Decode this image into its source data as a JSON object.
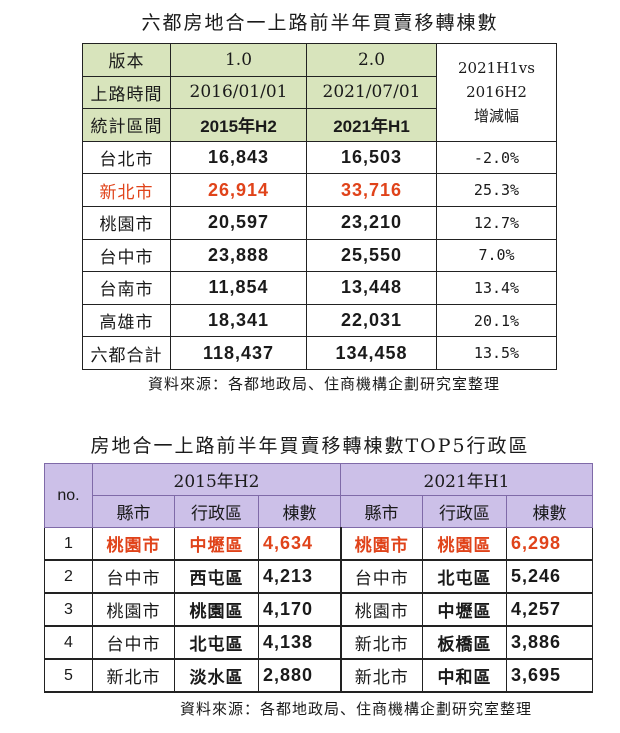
{
  "table1": {
    "title": "六都房地合一上路前半年買賣移轉棟數",
    "header": {
      "row1": [
        "版本",
        "1.0",
        "2.0",
        "2021H1vs"
      ],
      "row2": [
        "上路時間",
        "2016/01/01",
        "2021/07/01",
        "2016H2"
      ],
      "row3": [
        "統計區間",
        "2015年H2",
        "2021年H1",
        "增減幅"
      ]
    },
    "rows": [
      {
        "city": "台北市",
        "v2015": "16,843",
        "v2021": "16,503",
        "change": "-2.0%"
      },
      {
        "city": "新北市",
        "v2015": "26,914",
        "v2021": "33,716",
        "change": "25.3%"
      },
      {
        "city": "桃園市",
        "v2015": "20,597",
        "v2021": "23,210",
        "change": "12.7%"
      },
      {
        "city": "台中市",
        "v2015": "23,888",
        "v2021": "25,550",
        "change": "7.0%"
      },
      {
        "city": "台南市",
        "v2015": "11,854",
        "v2021": "13,448",
        "change": "13.4%"
      },
      {
        "city": "高雄市",
        "v2015": "18,341",
        "v2021": "22,031",
        "change": "20.1%"
      },
      {
        "city": "六都合計",
        "v2015": "118,437",
        "v2021": "134,458",
        "change": "13.5%"
      }
    ],
    "source": "資料來源：各都地政局、住商機構企劃研究室整理"
  },
  "table2": {
    "title": "房地合一上路前半年買賣移轉棟數TOP5行政區",
    "no_label": "no.",
    "period_a": "2015年H2",
    "period_b": "2021年H1",
    "col_city": "縣市",
    "col_district": "行政區",
    "col_count": "棟數",
    "rows": [
      {
        "no": "1",
        "a_city": "桃園市",
        "a_dist": "中壢區",
        "a_count": "4,634",
        "b_city": "桃園市",
        "b_dist": "桃園區",
        "b_count": "6,298"
      },
      {
        "no": "2",
        "a_city": "台中市",
        "a_dist": "西屯區",
        "a_count": "4,213",
        "b_city": "台中市",
        "b_dist": "北屯區",
        "b_count": "5,246"
      },
      {
        "no": "3",
        "a_city": "桃園市",
        "a_dist": "桃園區",
        "a_count": "4,170",
        "b_city": "桃園市",
        "b_dist": "中壢區",
        "b_count": "4,257"
      },
      {
        "no": "4",
        "a_city": "台中市",
        "a_dist": "北屯區",
        "a_count": "4,138",
        "b_city": "新北市",
        "b_dist": "板橋區",
        "b_count": "3,886"
      },
      {
        "no": "5",
        "a_city": "新北市",
        "a_dist": "淡水區",
        "a_count": "2,880",
        "b_city": "新北市",
        "b_dist": "中和區",
        "b_count": "3,695"
      }
    ],
    "source": "資料來源：各都地政局、住商機構企劃研究室整理"
  },
  "colors": {
    "highlight": "#e0431a",
    "header_green": "#d8e4bc",
    "header_purple": "#ccc0e8"
  }
}
